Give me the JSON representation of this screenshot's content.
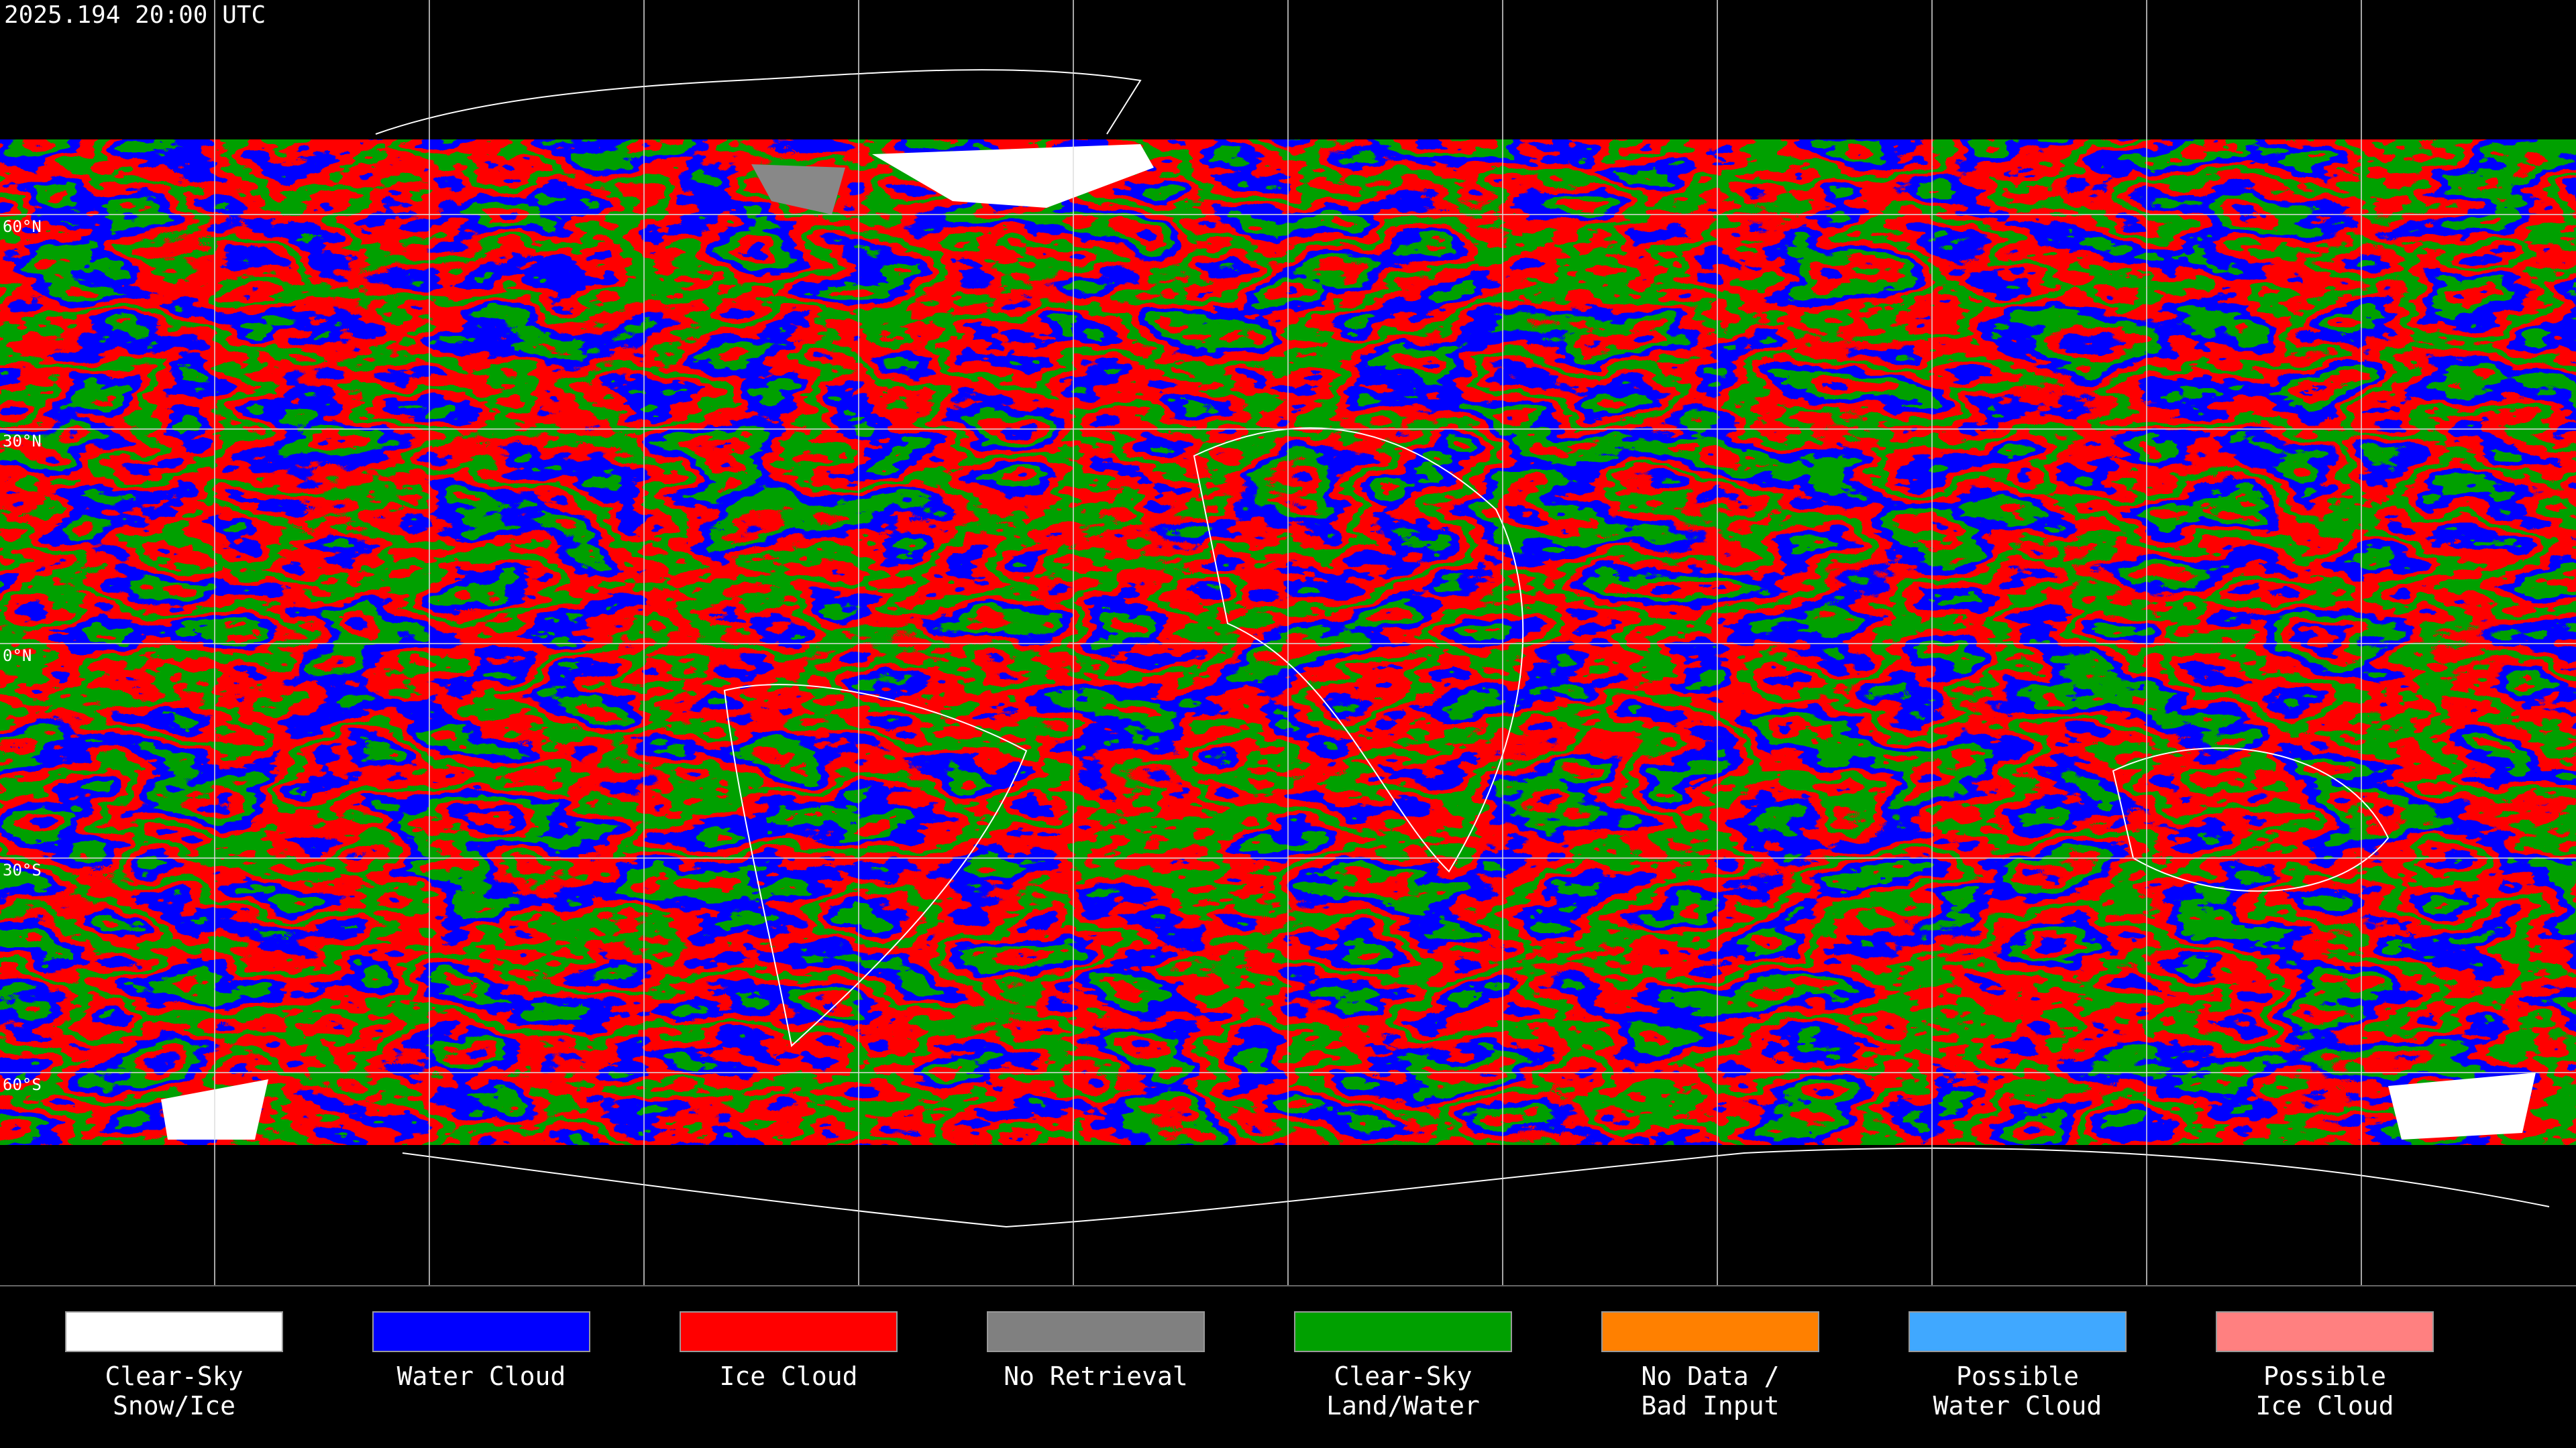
{
  "title": "2025.194 20:00 UTC",
  "latitude_labels": [
    "60°N",
    "30°N",
    "0°N",
    "30°S",
    "60°S"
  ],
  "legend": [
    {
      "lines": [
        "Clear-Sky",
        "Snow/Ice"
      ],
      "color": "#ffffff"
    },
    {
      "lines": [
        "Water Cloud"
      ],
      "color": "#0000ff"
    },
    {
      "lines": [
        "Ice Cloud"
      ],
      "color": "#ff0000"
    },
    {
      "lines": [
        "No Retrieval"
      ],
      "color": "#808080"
    },
    {
      "lines": [
        "Clear-Sky",
        "Land/Water"
      ],
      "color": "#00a000"
    },
    {
      "lines": [
        "No Data /",
        "Bad Input"
      ],
      "color": "#ff8000"
    },
    {
      "lines": [
        "Possible",
        "Water Cloud"
      ],
      "color": "#40a8ff"
    },
    {
      "lines": [
        "Possible",
        "Ice Cloud"
      ],
      "color": "#ff8080"
    }
  ]
}
